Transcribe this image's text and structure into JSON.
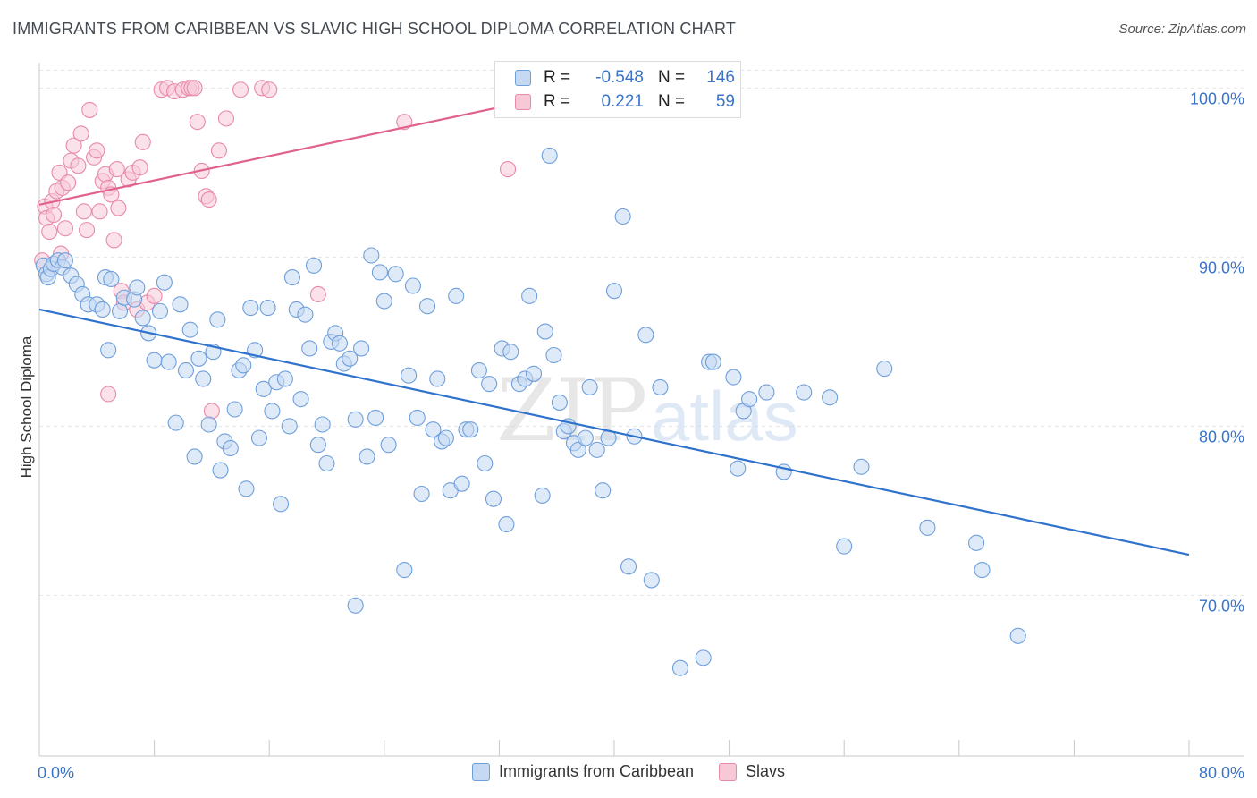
{
  "header": {
    "title": "IMMIGRANTS FROM CARIBBEAN VS SLAVIC HIGH SCHOOL DIPLOMA CORRELATION CHART",
    "source": "Source: ZipAtlas.com"
  },
  "legend": {
    "rows": [
      {
        "r_label": "R =",
        "r_value": "-0.548",
        "n_label": "N =",
        "n_value": "146"
      },
      {
        "r_label": "R =",
        "r_value": "0.221",
        "n_label": "N =",
        "n_value": "59"
      }
    ]
  },
  "watermark": {
    "zip": "ZIP",
    "atlas": "atlas"
  },
  "colors": {
    "blue_fill": "#c5d9f3",
    "blue_stroke": "#6f9fdb",
    "blue_line": "#2f72cc",
    "pink_fill": "#f7c9d7",
    "pink_stroke": "#e88aa8",
    "pink_line": "#e0628c",
    "tick_text": "#3a73c8",
    "grid": "#e4e4e4"
  },
  "chart_data": {
    "type": "scatter",
    "xlabel": "",
    "ylabel": "High School Diploma",
    "xlim": [
      0,
      80
    ],
    "ylim": [
      60.5,
      101.5
    ],
    "x_tick_labels": [
      "0.0%",
      "80.0%"
    ],
    "y_ticks": [
      70,
      80,
      90,
      100
    ],
    "y_tick_labels": [
      "70.0%",
      "80.0%",
      "90.0%",
      "100.0%"
    ],
    "grid": true,
    "legend_position": "top-center",
    "series": [
      {
        "name": "Immigrants from Caribbean",
        "color": "blue",
        "trend": {
          "x": [
            0,
            80
          ],
          "y": [
            86.9,
            72.4
          ]
        },
        "points": [
          [
            0.3,
            89.5
          ],
          [
            0.5,
            89.0
          ],
          [
            0.6,
            88.8
          ],
          [
            0.8,
            89.3
          ],
          [
            1.0,
            89.6
          ],
          [
            1.3,
            89.8
          ],
          [
            1.6,
            89.4
          ],
          [
            1.8,
            89.8
          ],
          [
            2.2,
            88.9
          ],
          [
            2.6,
            88.4
          ],
          [
            3.0,
            87.8
          ],
          [
            3.4,
            87.2
          ],
          [
            4.0,
            87.2
          ],
          [
            4.4,
            86.9
          ],
          [
            4.6,
            88.8
          ],
          [
            5.0,
            88.7
          ],
          [
            4.8,
            84.5
          ],
          [
            5.6,
            86.8
          ],
          [
            5.9,
            87.6
          ],
          [
            6.6,
            87.5
          ],
          [
            6.8,
            88.2
          ],
          [
            7.2,
            86.4
          ],
          [
            7.6,
            85.5
          ],
          [
            8.0,
            83.9
          ],
          [
            8.4,
            86.8
          ],
          [
            8.7,
            88.5
          ],
          [
            9.0,
            83.8
          ],
          [
            9.5,
            80.2
          ],
          [
            9.8,
            87.2
          ],
          [
            10.2,
            83.3
          ],
          [
            10.5,
            85.7
          ],
          [
            10.8,
            78.2
          ],
          [
            11.1,
            84.0
          ],
          [
            11.4,
            82.8
          ],
          [
            11.8,
            80.1
          ],
          [
            12.1,
            84.4
          ],
          [
            12.4,
            86.3
          ],
          [
            12.6,
            77.4
          ],
          [
            12.9,
            79.1
          ],
          [
            13.3,
            78.7
          ],
          [
            13.6,
            81.0
          ],
          [
            13.9,
            83.3
          ],
          [
            14.2,
            83.6
          ],
          [
            14.4,
            76.3
          ],
          [
            14.7,
            87.0
          ],
          [
            15.0,
            84.5
          ],
          [
            15.3,
            79.3
          ],
          [
            15.6,
            82.2
          ],
          [
            15.9,
            87.0
          ],
          [
            16.2,
            80.9
          ],
          [
            16.5,
            82.6
          ],
          [
            16.8,
            75.4
          ],
          [
            17.1,
            82.8
          ],
          [
            17.4,
            80.0
          ],
          [
            17.6,
            88.8
          ],
          [
            17.9,
            86.9
          ],
          [
            18.2,
            81.6
          ],
          [
            18.5,
            86.6
          ],
          [
            18.8,
            84.6
          ],
          [
            19.1,
            89.5
          ],
          [
            19.4,
            78.9
          ],
          [
            19.7,
            80.1
          ],
          [
            20.0,
            77.8
          ],
          [
            20.3,
            85.0
          ],
          [
            20.6,
            85.5
          ],
          [
            20.9,
            84.9
          ],
          [
            21.2,
            83.7
          ],
          [
            21.6,
            84.0
          ],
          [
            22.0,
            80.4
          ],
          [
            22.4,
            84.6
          ],
          [
            22.8,
            78.2
          ],
          [
            23.1,
            90.1
          ],
          [
            23.4,
            80.5
          ],
          [
            23.7,
            89.1
          ],
          [
            24.0,
            87.4
          ],
          [
            24.3,
            78.9
          ],
          [
            24.8,
            89.0
          ],
          [
            25.4,
            71.5
          ],
          [
            25.7,
            83.0
          ],
          [
            26.0,
            88.3
          ],
          [
            26.3,
            80.5
          ],
          [
            26.6,
            76.0
          ],
          [
            27.0,
            87.1
          ],
          [
            27.4,
            79.8
          ],
          [
            27.7,
            82.8
          ],
          [
            28.0,
            79.1
          ],
          [
            28.3,
            79.3
          ],
          [
            28.6,
            76.2
          ],
          [
            29.0,
            87.7
          ],
          [
            29.4,
            76.6
          ],
          [
            29.7,
            79.8
          ],
          [
            30.0,
            79.8
          ],
          [
            30.6,
            83.3
          ],
          [
            31.0,
            77.8
          ],
          [
            31.3,
            82.5
          ],
          [
            31.6,
            75.7
          ],
          [
            32.2,
            84.6
          ],
          [
            32.5,
            74.2
          ],
          [
            32.8,
            84.4
          ],
          [
            33.4,
            82.5
          ],
          [
            33.8,
            82.8
          ],
          [
            34.1,
            87.7
          ],
          [
            34.4,
            83.1
          ],
          [
            35.0,
            75.9
          ],
          [
            35.2,
            85.6
          ],
          [
            35.5,
            96.0
          ],
          [
            35.8,
            84.2
          ],
          [
            36.2,
            81.4
          ],
          [
            36.5,
            79.7
          ],
          [
            36.8,
            80.0
          ],
          [
            37.2,
            79.0
          ],
          [
            37.5,
            78.6
          ],
          [
            38.0,
            79.3
          ],
          [
            38.3,
            82.3
          ],
          [
            38.8,
            78.6
          ],
          [
            39.2,
            76.2
          ],
          [
            39.6,
            79.3
          ],
          [
            40.0,
            88.0
          ],
          [
            40.6,
            92.4
          ],
          [
            41.0,
            71.7
          ],
          [
            41.4,
            79.4
          ],
          [
            42.2,
            85.4
          ],
          [
            42.6,
            70.9
          ],
          [
            43.2,
            82.3
          ],
          [
            44.6,
            65.7
          ],
          [
            46.2,
            66.3
          ],
          [
            46.6,
            83.8
          ],
          [
            46.9,
            83.8
          ],
          [
            48.3,
            82.9
          ],
          [
            48.6,
            77.5
          ],
          [
            49.0,
            80.9
          ],
          [
            49.4,
            81.6
          ],
          [
            50.6,
            82.0
          ],
          [
            51.8,
            77.3
          ],
          [
            53.2,
            82.0
          ],
          [
            55.0,
            81.7
          ],
          [
            56.0,
            72.9
          ],
          [
            57.2,
            77.6
          ],
          [
            58.8,
            83.4
          ],
          [
            61.8,
            74.0
          ],
          [
            65.2,
            73.1
          ],
          [
            65.6,
            71.5
          ],
          [
            68.1,
            67.6
          ],
          [
            22.0,
            69.4
          ]
        ]
      },
      {
        "name": "Slavs",
        "color": "pink",
        "trend": {
          "x": [
            0,
            40
          ],
          "y": [
            93.1,
            100.3
          ]
        },
        "points": [
          [
            0.2,
            89.8
          ],
          [
            0.4,
            93.0
          ],
          [
            0.5,
            92.3
          ],
          [
            0.7,
            91.5
          ],
          [
            0.9,
            93.3
          ],
          [
            1.0,
            92.5
          ],
          [
            1.2,
            93.9
          ],
          [
            1.4,
            95.0
          ],
          [
            1.6,
            94.1
          ],
          [
            1.8,
            91.7
          ],
          [
            2.0,
            94.4
          ],
          [
            2.2,
            95.7
          ],
          [
            2.4,
            96.6
          ],
          [
            2.7,
            95.4
          ],
          [
            2.9,
            97.3
          ],
          [
            3.1,
            92.7
          ],
          [
            3.3,
            91.6
          ],
          [
            3.5,
            98.7
          ],
          [
            3.8,
            95.9
          ],
          [
            4.0,
            96.3
          ],
          [
            4.2,
            92.7
          ],
          [
            4.4,
            94.5
          ],
          [
            4.6,
            94.9
          ],
          [
            4.8,
            94.1
          ],
          [
            5.0,
            93.7
          ],
          [
            5.2,
            91.0
          ],
          [
            5.4,
            95.2
          ],
          [
            5.5,
            92.9
          ],
          [
            5.7,
            88.0
          ],
          [
            5.9,
            87.3
          ],
          [
            6.2,
            94.6
          ],
          [
            6.5,
            95.0
          ],
          [
            6.8,
            86.9
          ],
          [
            7.0,
            95.3
          ],
          [
            7.2,
            96.8
          ],
          [
            7.5,
            87.3
          ],
          [
            8.0,
            87.7
          ],
          [
            8.5,
            99.9
          ],
          [
            8.9,
            100.0
          ],
          [
            9.4,
            99.8
          ],
          [
            10.0,
            99.9
          ],
          [
            10.4,
            100.0
          ],
          [
            10.6,
            100.0
          ],
          [
            10.8,
            100.0
          ],
          [
            11.0,
            98.0
          ],
          [
            11.3,
            95.1
          ],
          [
            11.6,
            93.6
          ],
          [
            11.8,
            93.4
          ],
          [
            12.0,
            80.9
          ],
          [
            12.5,
            96.3
          ],
          [
            13.0,
            98.2
          ],
          [
            14.0,
            99.9
          ],
          [
            15.5,
            100.0
          ],
          [
            16.0,
            99.9
          ],
          [
            19.4,
            87.8
          ],
          [
            25.4,
            98.0
          ],
          [
            32.6,
            95.2
          ],
          [
            4.8,
            81.9
          ],
          [
            1.5,
            90.2
          ]
        ]
      }
    ]
  }
}
